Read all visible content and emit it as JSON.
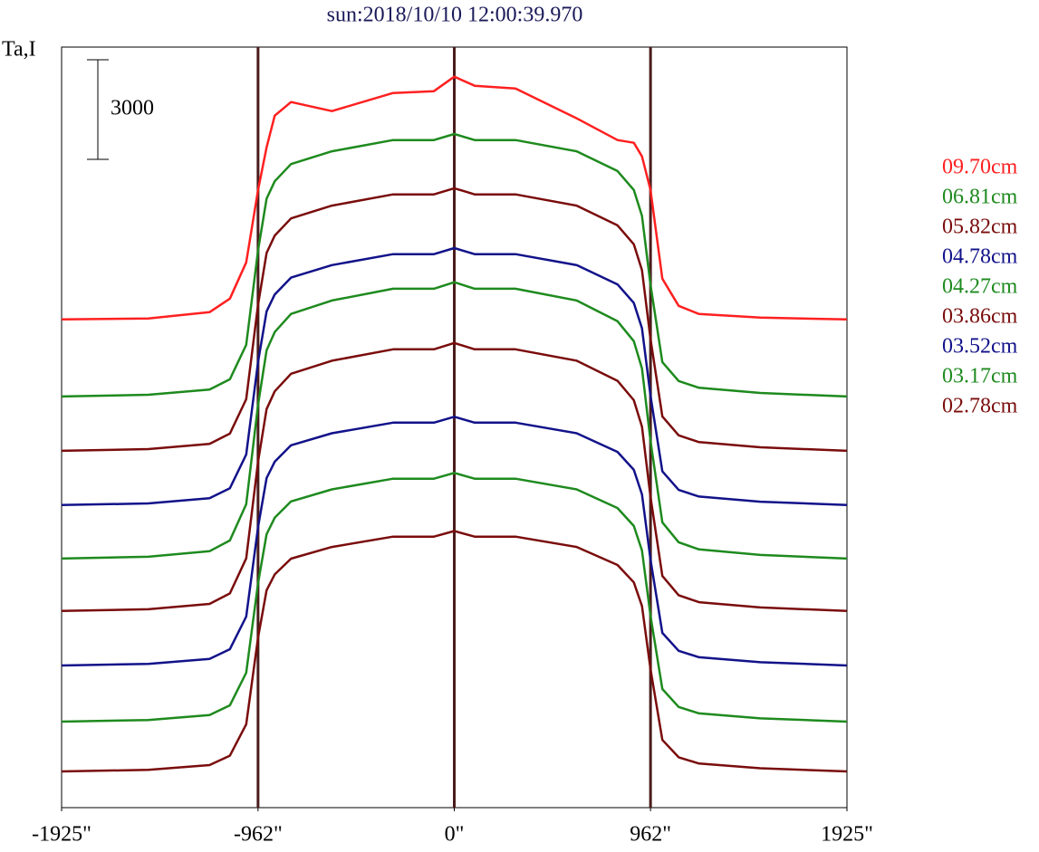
{
  "chart_data": {
    "type": "line",
    "title": "sun:2018/10/10 12:00:39.970",
    "y_label": "Ta,I",
    "scale_bar": 3000,
    "x": [
      -1925,
      -1500,
      -1200,
      -1100,
      -1020,
      -962,
      -920,
      -880,
      -800,
      -600,
      -300,
      -100,
      0,
      100,
      300,
      600,
      800,
      880,
      920,
      962,
      1020,
      1100,
      1200,
      1500,
      1925
    ],
    "xlim": [
      -1925,
      1925
    ],
    "xticks": [
      {
        "value": -1925,
        "label": "-1925\""
      },
      {
        "value": -962,
        "label": "-962\""
      },
      {
        "value": 0,
        "label": "0\""
      },
      {
        "value": 962,
        "label": "962\""
      },
      {
        "value": 1925,
        "label": "1925\""
      }
    ],
    "ylim": [
      0,
      22900
    ],
    "vlines": [
      -962,
      0,
      962
    ],
    "vline_color": "#4a1c1c",
    "series": [
      {
        "name": "09.70cm",
        "color": "#ff2020",
        "values": [
          14700,
          14727,
          14918,
          15327,
          16418,
          18600,
          19881,
          20836,
          21245,
          20972,
          21518,
          21572,
          22008,
          21736,
          21654,
          20754,
          20100,
          20018,
          19609,
          18600,
          15927,
          15109,
          14864,
          14755,
          14700
        ]
      },
      {
        "name": "06.81cm",
        "color": "#1e8a1e",
        "values": [
          12380,
          12432,
          12589,
          12898,
          13933,
          16783,
          18337,
          18859,
          19377,
          19762,
          20099,
          20099,
          20284,
          20099,
          20099,
          19762,
          19168,
          18598,
          17819,
          15748,
          13416,
          12846,
          12641,
          12485,
          12380
        ]
      },
      {
        "name": "05.82cm",
        "color": "#7a0c0c",
        "values": [
          10745,
          10797,
          10954,
          11263,
          12298,
          15148,
          16702,
          17224,
          17742,
          18127,
          18464,
          18464,
          18649,
          18464,
          18464,
          18127,
          17533,
          16963,
          16184,
          14113,
          11781,
          11211,
          11006,
          10850,
          10745
        ]
      },
      {
        "name": "04.78cm",
        "color": "#12128a",
        "values": [
          9110,
          9161,
          9315,
          9617,
          10631,
          13421,
          14941,
          15453,
          15959,
          16336,
          16666,
          16666,
          16848,
          16666,
          16666,
          16336,
          15755,
          15197,
          14434,
          12407,
          10124,
          9566,
          9366,
          9212,
          9110
        ]
      },
      {
        "name": "04.27cm",
        "color": "#1e8a1e",
        "values": [
          7500,
          7555,
          7720,
          8045,
          9135,
          12135,
          13770,
          14320,
          14865,
          15270,
          15625,
          15625,
          15820,
          15625,
          15625,
          15270,
          14645,
          14045,
          13225,
          11045,
          8590,
          7990,
          7775,
          7610,
          7500
        ]
      },
      {
        "name": "03.86cm",
        "color": "#7a0c0c",
        "values": [
          5920,
          5973,
          6133,
          6449,
          7506,
          10416,
          12002,
          12535,
          13064,
          13457,
          13801,
          13801,
          13990,
          13801,
          13801,
          13457,
          12851,
          12269,
          11473,
          9359,
          6977,
          6395,
          6187,
          6027,
          5920
        ]
      },
      {
        "name": "03.52cm",
        "color": "#12128a",
        "values": [
          4280,
          4330,
          4478,
          4771,
          5752,
          8452,
          9923,
          10418,
          10909,
          11273,
          11593,
          11593,
          11768,
          11593,
          11593,
          11273,
          10711,
          10171,
          9433,
          7471,
          5261,
          4721,
          4528,
          4379,
          4280
        ]
      },
      {
        "name": "03.17cm",
        "color": "#1e8a1e",
        "values": [
          2590,
          2640,
          2788,
          3081,
          4062,
          6762,
          8233,
          8728,
          9219,
          9583,
          9903,
          9903,
          10078,
          9903,
          9903,
          9583,
          9021,
          8481,
          7743,
          5781,
          3571,
          3031,
          2838,
          2689,
          2590
        ]
      },
      {
        "name": "02.78cm",
        "color": "#7a0c0c",
        "values": [
          1090,
          1138,
          1281,
          1564,
          2512,
          5122,
          6545,
          7023,
          7498,
          7850,
          8159,
          8159,
          8328,
          8159,
          8159,
          7850,
          7306,
          6784,
          6071,
          4174,
          2038,
          1516,
          1329,
          1186,
          1090
        ]
      }
    ]
  }
}
